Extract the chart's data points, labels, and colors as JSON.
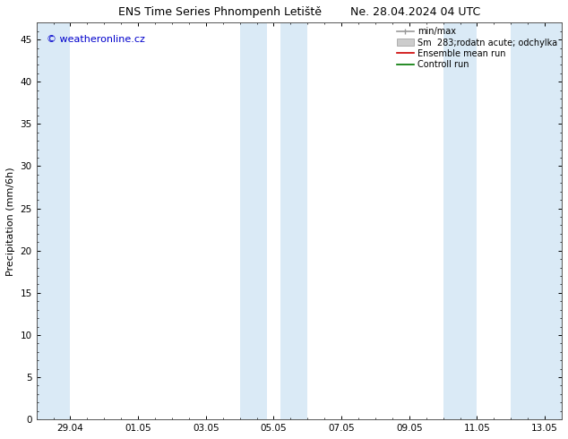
{
  "title": "ENS Time Series Phnompenh Letiště        Ne. 28.04.2024 04 UTC",
  "ylabel": "Precipitation (mm/6h)",
  "watermark": "© weatheronline.cz",
  "watermark_color": "#0000cc",
  "ylim": [
    0,
    47
  ],
  "yticks": [
    0,
    5,
    10,
    15,
    20,
    25,
    30,
    35,
    40,
    45
  ],
  "xtick_labels": [
    "29.04",
    "01.05",
    "03.05",
    "05.05",
    "07.05",
    "09.05",
    "11.05",
    "13.05"
  ],
  "background_color": "#ffffff",
  "plot_bg_color": "#ffffff",
  "band_color": "#daeaf6",
  "shaded_bands": [
    [
      0.0,
      1.0
    ],
    [
      6.0,
      6.8
    ],
    [
      7.2,
      8.0
    ],
    [
      12.0,
      13.0
    ],
    [
      14.0,
      15.5
    ]
  ],
  "xtick_positions": [
    1,
    3,
    5,
    7,
    9,
    11,
    13,
    15
  ],
  "x_min": 0.0,
  "x_max": 15.5,
  "legend_fontsize": 7,
  "title_fontsize": 9,
  "ylabel_fontsize": 8,
  "watermark_fontsize": 8
}
